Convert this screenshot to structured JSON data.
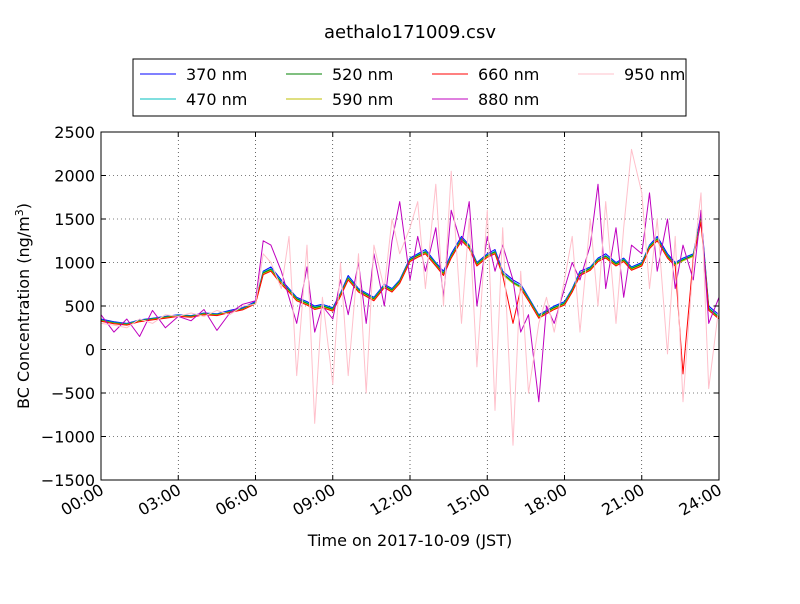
{
  "chart_data": {
    "type": "line",
    "title": "aethalo171009.csv",
    "xlabel": "Time on 2017-10-09 (JST)",
    "ylabel": "BC Concentration (ng/m",
    "ylabel_sup": "3",
    "ylabel_tail": ")",
    "xlim": [
      0,
      24
    ],
    "ylim": [
      -1500,
      2500
    ],
    "xticks": [
      0,
      3,
      6,
      9,
      12,
      15,
      18,
      21,
      24
    ],
    "xtick_labels": [
      "00:00",
      "03:00",
      "06:00",
      "09:00",
      "12:00",
      "15:00",
      "18:00",
      "21:00",
      "24:00"
    ],
    "yticks": [
      -1500,
      -1000,
      -500,
      0,
      500,
      1000,
      1500,
      2000,
      2500
    ],
    "ytick_labels": [
      "−1500",
      "−1000",
      "−500",
      "0",
      "500",
      "1000",
      "1500",
      "2000",
      "2500"
    ],
    "grid": true,
    "legend_position": "top-center",
    "x_hours": [
      0.0,
      0.5,
      1.0,
      1.5,
      2.0,
      2.5,
      3.0,
      3.5,
      4.0,
      4.5,
      5.0,
      5.5,
      6.0,
      6.3,
      6.6,
      7.0,
      7.3,
      7.6,
      8.0,
      8.3,
      8.6,
      9.0,
      9.3,
      9.6,
      10.0,
      10.3,
      10.6,
      11.0,
      11.3,
      11.6,
      12.0,
      12.3,
      12.6,
      13.0,
      13.3,
      13.6,
      14.0,
      14.3,
      14.6,
      15.0,
      15.3,
      15.6,
      16.0,
      16.3,
      16.6,
      17.0,
      17.3,
      17.6,
      18.0,
      18.3,
      18.6,
      19.0,
      19.3,
      19.6,
      20.0,
      20.3,
      20.6,
      21.0,
      21.3,
      21.6,
      22.0,
      22.3,
      22.6,
      23.0,
      23.3,
      23.6,
      24.0
    ],
    "series": [
      {
        "name": "370 nm",
        "color": "#0000ff",
        "values": [
          350,
          320,
          300,
          340,
          360,
          380,
          400,
          390,
          420,
          410,
          450,
          480,
          550,
          900,
          950,
          800,
          700,
          600,
          550,
          500,
          520,
          480,
          650,
          850,
          700,
          650,
          600,
          750,
          700,
          800,
          1050,
          1100,
          1150,
          1000,
          900,
          1100,
          1300,
          1200,
          1000,
          1100,
          1150,
          900,
          800,
          750,
          600,
          400,
          450,
          500,
          550,
          700,
          900,
          950,
          1050,
          1100,
          1000,
          1050,
          950,
          1000,
          1200,
          1300,
          1100,
          1000,
          1050,
          1100,
          1550,
          500,
          400
        ]
      },
      {
        "name": "470 nm",
        "color": "#00bfbf",
        "values": [
          340,
          310,
          295,
          335,
          355,
          375,
          395,
          385,
          415,
          405,
          440,
          470,
          540,
          890,
          930,
          780,
          690,
          590,
          540,
          490,
          510,
          470,
          640,
          830,
          690,
          640,
          590,
          740,
          690,
          790,
          1040,
          1090,
          1130,
          990,
          880,
          1080,
          1280,
          1190,
          990,
          1090,
          1130,
          880,
          780,
          730,
          590,
          390,
          440,
          490,
          540,
          690,
          880,
          940,
          1040,
          1080,
          990,
          1040,
          940,
          990,
          1190,
          1280,
          1080,
          990,
          1040,
          1090,
          1520,
          480,
          380
        ]
      },
      {
        "name": "520 nm",
        "color": "#008000",
        "values": [
          335,
          305,
          290,
          330,
          350,
          370,
          390,
          380,
          410,
          400,
          435,
          465,
          535,
          880,
          920,
          770,
          680,
          580,
          530,
          480,
          500,
          460,
          630,
          820,
          680,
          630,
          580,
          730,
          680,
          780,
          1030,
          1080,
          1120,
          980,
          870,
          1070,
          1270,
          1180,
          980,
          1080,
          1120,
          870,
          770,
          720,
          580,
          380,
          430,
          480,
          530,
          680,
          870,
          930,
          1030,
          1070,
          980,
          1030,
          930,
          980,
          1180,
          1270,
          1070,
          980,
          1030,
          1080,
          1500,
          470,
          370
        ]
      },
      {
        "name": "590 nm",
        "color": "#bfbf00",
        "values": [
          330,
          300,
          285,
          325,
          345,
          365,
          385,
          375,
          405,
          395,
          430,
          460,
          530,
          870,
          910,
          760,
          670,
          570,
          520,
          470,
          490,
          450,
          620,
          810,
          670,
          620,
          570,
          720,
          670,
          770,
          1020,
          1070,
          1110,
          970,
          860,
          1060,
          1260,
          1170,
          970,
          1070,
          1110,
          860,
          760,
          710,
          570,
          370,
          420,
          470,
          520,
          670,
          860,
          920,
          1020,
          1060,
          970,
          1020,
          920,
          970,
          1170,
          1260,
          1060,
          970,
          1020,
          1070,
          1480,
          460,
          360
        ]
      },
      {
        "name": "660 nm",
        "color": "#ff0000",
        "values": [
          325,
          295,
          280,
          320,
          340,
          360,
          380,
          370,
          400,
          390,
          425,
          455,
          525,
          860,
          900,
          750,
          660,
          560,
          510,
          460,
          480,
          440,
          610,
          800,
          660,
          610,
          560,
          710,
          660,
          760,
          1010,
          1060,
          1100,
          960,
          850,
          1050,
          1250,
          1160,
          960,
          1060,
          1100,
          850,
          300,
          700,
          560,
          360,
          410,
          460,
          510,
          660,
          850,
          910,
          1010,
          1050,
          960,
          1010,
          910,
          960,
          1160,
          1250,
          1050,
          960,
          -280,
          1060,
          1460,
          450,
          350
        ]
      },
      {
        "name": "880 nm",
        "color": "#bf00bf",
        "values": [
          400,
          200,
          350,
          150,
          450,
          250,
          380,
          330,
          460,
          220,
          420,
          520,
          560,
          1250,
          1200,
          900,
          600,
          300,
          950,
          200,
          500,
          350,
          800,
          400,
          1000,
          300,
          1100,
          500,
          1250,
          1700,
          800,
          1300,
          900,
          1400,
          600,
          1600,
          1200,
          1700,
          500,
          1300,
          900,
          1200,
          800,
          200,
          400,
          -600,
          500,
          300,
          700,
          1000,
          800,
          1200,
          1900,
          700,
          1400,
          600,
          1200,
          1100,
          1800,
          900,
          1500,
          700,
          1200,
          800,
          1600,
          300,
          600
        ]
      },
      {
        "name": "950 nm",
        "color": "#ffc0cb",
        "values": [
          300,
          280,
          250,
          350,
          300,
          400,
          380,
          420,
          380,
          450,
          400,
          500,
          520,
          1100,
          1000,
          700,
          1300,
          -300,
          1200,
          -850,
          600,
          -400,
          1000,
          -300,
          1100,
          -500,
          1200,
          700,
          1500,
          1100,
          1400,
          1700,
          700,
          1900,
          500,
          2050,
          300,
          1500,
          -200,
          1600,
          -700,
          1400,
          -1100,
          900,
          -500,
          300,
          600,
          200,
          800,
          1300,
          200,
          1500,
          500,
          1700,
          300,
          1400,
          2300,
          1800,
          700,
          1500,
          -50,
          1300,
          -600,
          1000,
          1800,
          -450,
          500
        ]
      }
    ]
  }
}
